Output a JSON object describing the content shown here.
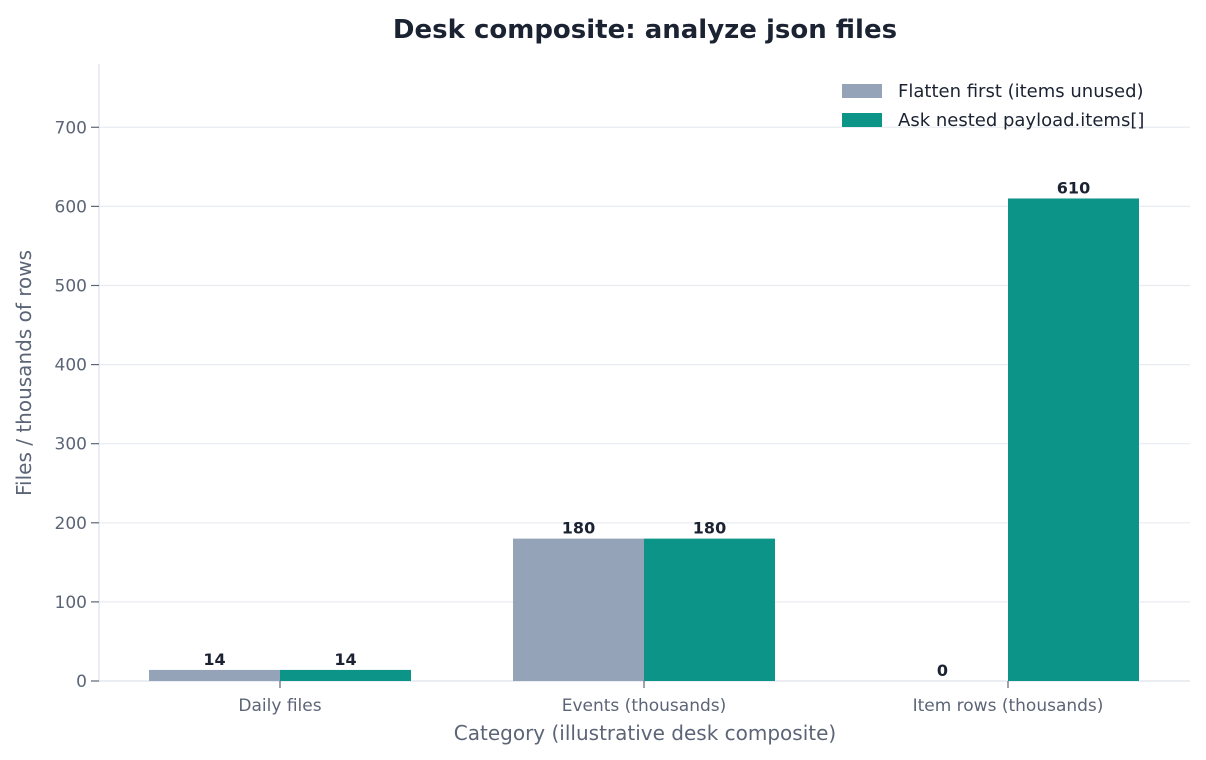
{
  "chart_data": {
    "type": "bar",
    "title": "Desk composite: analyze json files",
    "xlabel": "Category (illustrative desk composite)",
    "ylabel": "Files / thousands of rows",
    "categories": [
      "Daily files",
      "Events (thousands)",
      "Item rows (thousands)"
    ],
    "series": [
      {
        "name": "Flatten first (items unused)",
        "values": [
          14,
          180,
          0
        ],
        "color": "#94a3b8",
        "labels": [
          "14",
          "180",
          "0"
        ]
      },
      {
        "name": "Ask nested payload.items[]",
        "values": [
          14,
          180,
          610
        ],
        "color": "#0d9488",
        "labels": [
          "14",
          "180",
          "610"
        ]
      }
    ],
    "ylim": [
      0,
      780
    ],
    "yticks": [
      0,
      100,
      200,
      300,
      400,
      500,
      600,
      700
    ],
    "ytick_labels": [
      "0",
      "100",
      "200",
      "300",
      "400",
      "500",
      "600",
      "700"
    ],
    "grid": "horizontal",
    "legend_position": "top-right"
  }
}
